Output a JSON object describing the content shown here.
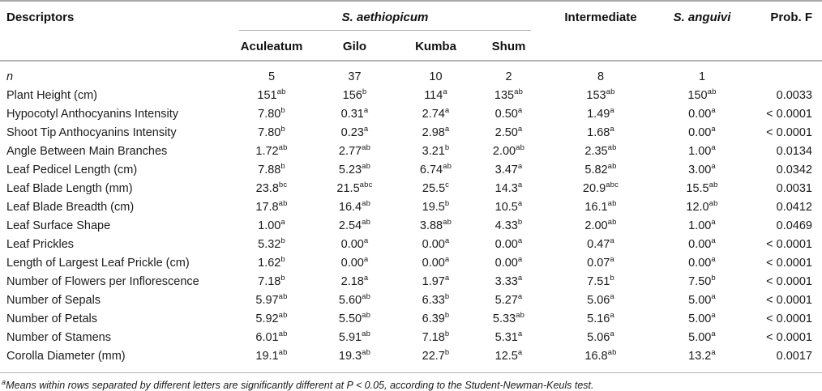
{
  "table": {
    "header": {
      "descriptors": "Descriptors",
      "species_group": "S. aethiopicum",
      "subcolumns": [
        "Aculeatum",
        "Gilo",
        "Kumba",
        "Shum"
      ],
      "intermediate": "Intermediate",
      "s_anguivi": "S. anguivi",
      "prob_f": "Prob. F"
    },
    "rows": [
      {
        "label": "n",
        "italic_label": true,
        "cells": [
          "5",
          "37",
          "10",
          "2",
          "8",
          "1",
          ""
        ]
      },
      {
        "label": "Plant Height (cm)",
        "cells": [
          "151^ab",
          "156^b",
          "114^a",
          "135^ab",
          "153^ab",
          "150^ab",
          "0.0033"
        ]
      },
      {
        "label": "Hypocotyl Anthocyanins Intensity",
        "cells": [
          "7.80^b",
          "0.31^a",
          "2.74^a",
          "0.50^a",
          "1.49^a",
          "0.00^a",
          "< 0.0001"
        ]
      },
      {
        "label": "Shoot Tip Anthocyanins Intensity",
        "cells": [
          "7.80^b",
          "0.23^a",
          "2.98^a",
          "2.50^a",
          "1.68^a",
          "0.00^a",
          "< 0.0001"
        ]
      },
      {
        "label": "Angle Between Main Branches",
        "cells": [
          "1.72^ab",
          "2.77^ab",
          "3.21^b",
          "2.00^ab",
          "2.35^ab",
          "1.00^a",
          "0.0134"
        ]
      },
      {
        "label": "Leaf Pedicel Length (cm)",
        "cells": [
          "7.88^b",
          "5.23^ab",
          "6.74^ab",
          "3.47^a",
          "5.82^ab",
          "3.00^a",
          "0.0342"
        ]
      },
      {
        "label": "Leaf Blade Length (mm)",
        "cells": [
          "23.8^bc",
          "21.5^abc",
          "25.5^c",
          "14.3^a",
          "20.9^abc",
          "15.5^ab",
          "0.0031"
        ]
      },
      {
        "label": "Leaf Blade Breadth (cm)",
        "cells": [
          "17.8^ab",
          "16.4^ab",
          "19.5^b",
          "10.5^a",
          "16.1^ab",
          "12.0^ab",
          "0.0412"
        ]
      },
      {
        "label": "Leaf Surface Shape",
        "cells": [
          "1.00^a",
          "2.54^ab",
          "3.88^ab",
          "4.33^b",
          "2.00^ab",
          "1.00^a",
          "0.0469"
        ]
      },
      {
        "label": "Leaf Prickles",
        "cells": [
          "5.32^b",
          "0.00^a",
          "0.00^a",
          "0.00^a",
          "0.47^a",
          "0.00^a",
          "< 0.0001"
        ]
      },
      {
        "label": "Length of Largest Leaf Prickle (cm)",
        "cells": [
          "1.62^b",
          "0.00^a",
          "0.00^a",
          "0.00^a",
          "0.07^a",
          "0.00^a",
          "< 0.0001"
        ]
      },
      {
        "label": "Number of Flowers per Inflorescence",
        "cells": [
          "7.18^b",
          "2.18^a",
          "1.97^a",
          "3.33^a",
          "7.51^b",
          "7.50^b",
          "< 0.0001"
        ]
      },
      {
        "label": "Number of Sepals",
        "cells": [
          "5.97^ab",
          "5.60^ab",
          "6.33^b",
          "5.27^a",
          "5.06^a",
          "5.00^a",
          "< 0.0001"
        ]
      },
      {
        "label": "Number of Petals",
        "cells": [
          "5.92^ab",
          "5.50^ab",
          "6.39^b",
          "5.33^ab",
          "5.16^a",
          "5.00^a",
          "< 0.0001"
        ]
      },
      {
        "label": "Number of Stamens",
        "cells": [
          "6.01^ab",
          "5.91^ab",
          "7.18^b",
          "5.31^a",
          "5.06^a",
          "5.00^a",
          "< 0.0001"
        ]
      },
      {
        "label": "Corolla Diameter (mm)",
        "cells": [
          "19.1^ab",
          "19.3^ab",
          "22.7^b",
          "12.5^a",
          "16.8^ab",
          "13.2^a",
          "0.0017"
        ]
      }
    ]
  },
  "footnote": {
    "marker": "a",
    "text": "Means within rows separated by different letters are significantly different at P < 0.05, according to the Student-Newman-Keuls test."
  },
  "colors": {
    "rule_gray": "#b3b3b3",
    "top_rule": "#a9a9a9",
    "text": "#1b1b1b"
  }
}
